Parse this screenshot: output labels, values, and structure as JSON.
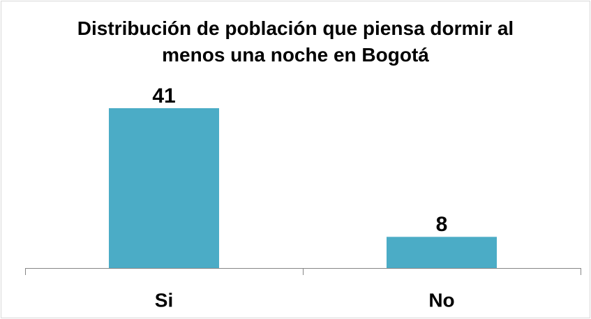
{
  "chart_data": {
    "type": "bar",
    "title": "Distribución de población que piensa dormir al menos una noche en Bogotá",
    "categories": [
      "Si",
      "No"
    ],
    "values": [
      41,
      8
    ],
    "color": "#4bacc6"
  }
}
